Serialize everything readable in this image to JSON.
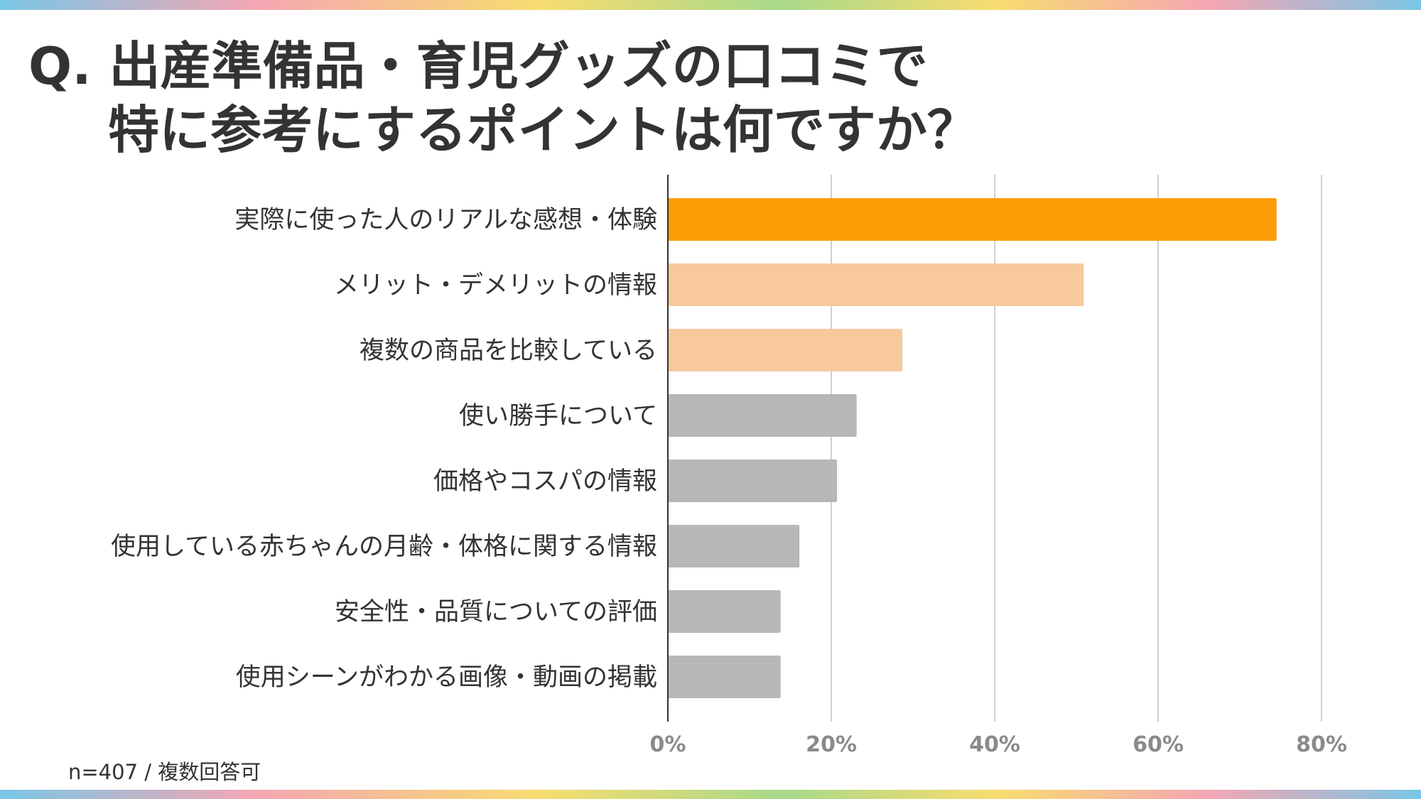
{
  "title": {
    "line1": "Q. 出産準備品・育児グッズの口コミで",
    "line2": "特に参考にするポイントは何ですか？"
  },
  "note": "n=407 / 複数回答可",
  "colors": {
    "highlight": "#fd9c04",
    "secondary": "#f7c99c",
    "other": "#b7b7b7",
    "grid": "#cfcfcf",
    "axis": "#333333"
  },
  "chart_data": {
    "type": "bar",
    "orientation": "horizontal",
    "categories": [
      "実際に使った人のリアルな感想・体験",
      "メリット・デメリットの情報",
      "複数の商品を比較している",
      "使い勝手について",
      "価格やコスパの情報",
      "使用している赤ちゃんの月齢・体格に関する情報",
      "安全性・品質についての評価",
      "使用シーンがわかる画像・動画の掲載"
    ],
    "values": [
      74.5,
      50.9,
      28.7,
      23.1,
      20.7,
      16.1,
      13.8,
      13.8
    ],
    "color_groups": [
      "highlight",
      "secondary",
      "secondary",
      "other",
      "other",
      "other",
      "other",
      "other"
    ],
    "xlim": [
      0,
      80
    ],
    "xticks": [
      "0%",
      "20%",
      "40%",
      "60%",
      "80%"
    ],
    "grid": true,
    "legend": "none"
  }
}
